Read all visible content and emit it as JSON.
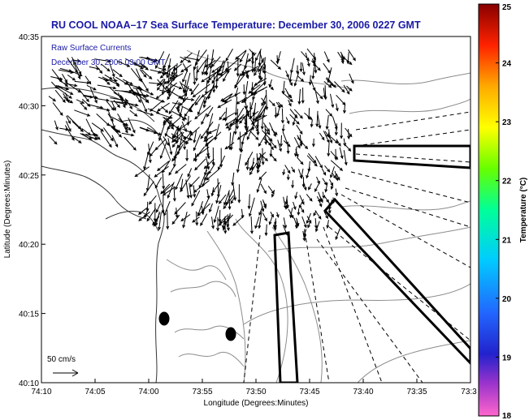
{
  "title": "RU COOL  NOAA–17  Sea Surface Temperature:  December 30, 2006 0227 GMT",
  "legend": {
    "line1": "Raw Surface Currents",
    "line2": "December 30, 2006 03:00 GMT",
    "scale_label": "50 cm/s"
  },
  "axes": {
    "xlabel": "Longitude (Degrees:Minutes)",
    "ylabel": "Latitude (Degrees:Minutes)",
    "xticks": [
      "74:10",
      "74:05",
      "74:00",
      "73:55",
      "73:50",
      "73:45",
      "73:40",
      "73:35",
      "73:3"
    ],
    "yticks": [
      "40:35",
      "40:30",
      "40:25",
      "40:20",
      "40:15",
      "40:10"
    ]
  },
  "colorbar": {
    "label": "Temperature (°C)",
    "ticks": [
      "25",
      "24",
      "23",
      "22",
      "21",
      "20",
      "19",
      "18"
    ],
    "min": 18,
    "max": 25
  },
  "colors": {
    "title_text": "#1a1aa6",
    "land_outline": "#333333",
    "bathymetry": "#8c8c8c",
    "vectors": "#000000",
    "frame": "#000000"
  }
}
